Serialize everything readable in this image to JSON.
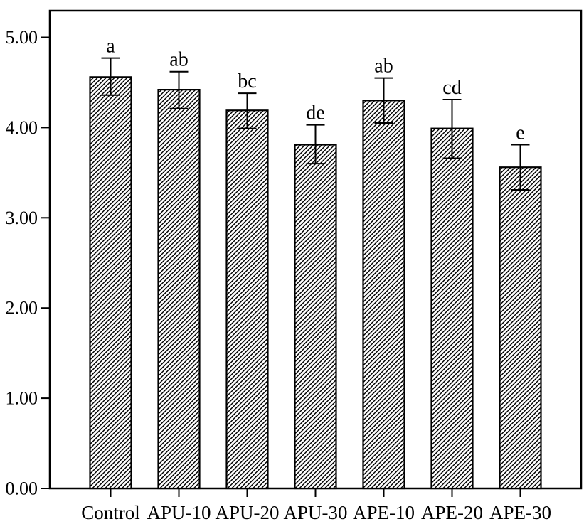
{
  "figure": {
    "background": "#ffffff",
    "ink_color": "#000000"
  },
  "chart_data": {
    "type": "bar",
    "title": "",
    "xlabel": "",
    "ylabel": "",
    "grid": false,
    "legend": null,
    "categories": [
      "Control",
      "APU-10",
      "APU-20",
      "APU-30",
      "APE-10",
      "APE-20",
      "APE-30"
    ],
    "values": [
      4.56,
      4.42,
      4.19,
      3.81,
      4.3,
      3.99,
      3.56
    ],
    "error_upper": [
      4.77,
      4.62,
      4.38,
      4.03,
      4.55,
      4.31,
      3.81
    ],
    "error_lower": [
      4.36,
      4.21,
      3.99,
      3.6,
      4.05,
      3.66,
      3.31
    ],
    "significance_labels": [
      "a",
      "ab",
      "bc",
      "de",
      "ab",
      "cd",
      "e"
    ],
    "y_tick_labels": [
      "0.00",
      "1.00",
      "2.00",
      "3.00",
      "4.00",
      "5.00"
    ],
    "y_tick_values": [
      0,
      1,
      2,
      3,
      4,
      5
    ],
    "ylim": [
      0,
      5.29
    ],
    "bar_style": {
      "fill": "diagonal-hatch",
      "hatch_direction": "forward-slash",
      "ink": "#000000",
      "background": "#ffffff"
    }
  }
}
